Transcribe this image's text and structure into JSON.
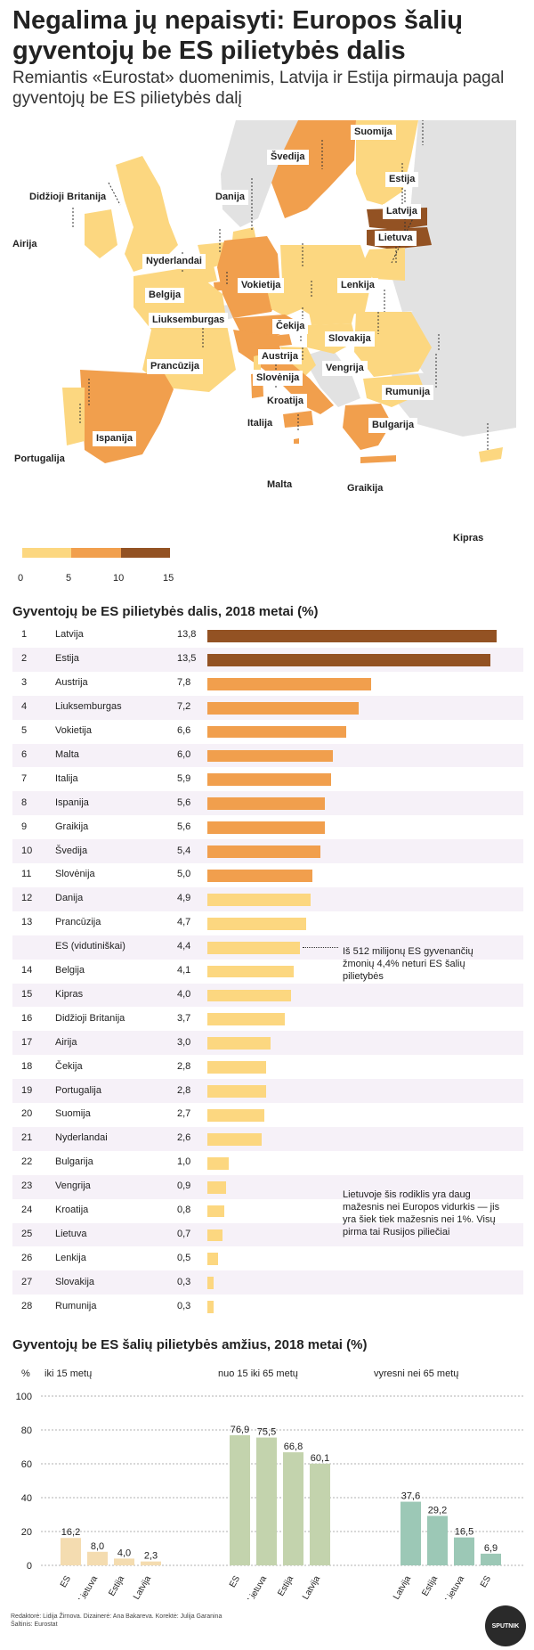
{
  "title": "Negalima jų nepaisyti: Europos šalių gyventojų be ES pilietybės dalis",
  "subtitle": "Remiantis «Eurostat» duomenimis, Latvija ir Estija pirmauja pagal gyventojų be ES pilietybės dalį",
  "colors": {
    "light": "#fcd780",
    "mid": "#f19f4d",
    "dark": "#935223",
    "grey": "#e2e2e2",
    "green": "#c3d3ad",
    "teal": "#9cc8b6",
    "age1": "#f4dcb0"
  },
  "map_labels": [
    {
      "name": "Suomija"
    },
    {
      "name": "Švedija"
    },
    {
      "name": "Estija"
    },
    {
      "name": "Latvija"
    },
    {
      "name": "Didžioji Britanija"
    },
    {
      "name": "Danija"
    },
    {
      "name": "Lietuva"
    },
    {
      "name": "Airija"
    },
    {
      "name": "Nyderlandai"
    },
    {
      "name": "Belgija"
    },
    {
      "name": "Vokietija"
    },
    {
      "name": "Lenkija"
    },
    {
      "name": "Liuksemburgas"
    },
    {
      "name": "Čekija"
    },
    {
      "name": "Slovakija"
    },
    {
      "name": "Austrija"
    },
    {
      "name": "Prancūzija"
    },
    {
      "name": "Vengrija"
    },
    {
      "name": "Slovėnija"
    },
    {
      "name": "Rumunija"
    },
    {
      "name": "Kroatija"
    },
    {
      "name": "Italija"
    },
    {
      "name": "Bulgarija"
    },
    {
      "name": "Ispanija"
    },
    {
      "name": "Portugalija"
    },
    {
      "name": "Malta"
    },
    {
      "name": "Graikija"
    },
    {
      "name": "Kipras"
    }
  ],
  "legend": {
    "ticks": [
      "0",
      "5",
      "10",
      "15"
    ]
  },
  "chart_data": [
    {
      "type": "bar",
      "title": "Gyventojų be ES pilietybės dalis, 2018 metai (%)",
      "xlim": [
        0,
        14
      ],
      "rows": [
        {
          "rank": "1",
          "country": "Latvija",
          "value": 13.8,
          "label": "13,8"
        },
        {
          "rank": "2",
          "country": "Estija",
          "value": 13.5,
          "label": "13,5"
        },
        {
          "rank": "3",
          "country": "Austrija",
          "value": 7.8,
          "label": "7,8"
        },
        {
          "rank": "4",
          "country": "Liuksemburgas",
          "value": 7.2,
          "label": "7,2"
        },
        {
          "rank": "5",
          "country": "Vokietija",
          "value": 6.6,
          "label": "6,6"
        },
        {
          "rank": "6",
          "country": "Malta",
          "value": 6.0,
          "label": "6,0"
        },
        {
          "rank": "7",
          "country": "Italija",
          "value": 5.9,
          "label": "5,9"
        },
        {
          "rank": "8",
          "country": "Ispanija",
          "value": 5.6,
          "label": "5,6"
        },
        {
          "rank": "9",
          "country": "Graikija",
          "value": 5.6,
          "label": "5,6"
        },
        {
          "rank": "10",
          "country": "Švedija",
          "value": 5.4,
          "label": "5,4"
        },
        {
          "rank": "11",
          "country": "Slovėnija",
          "value": 5.0,
          "label": "5,0"
        },
        {
          "rank": "12",
          "country": "Danija",
          "value": 4.9,
          "label": "4,9"
        },
        {
          "rank": "13",
          "country": "Prancūzija",
          "value": 4.7,
          "label": "4,7"
        },
        {
          "rank": "",
          "country": "ES (vidutiniškai)",
          "value": 4.4,
          "label": "4,4"
        },
        {
          "rank": "14",
          "country": "Belgija",
          "value": 4.1,
          "label": "4,1"
        },
        {
          "rank": "15",
          "country": "Kipras",
          "value": 4.0,
          "label": "4,0"
        },
        {
          "rank": "16",
          "country": "Didžioji Britanija",
          "value": 3.7,
          "label": "3,7"
        },
        {
          "rank": "17",
          "country": "Airija",
          "value": 3.0,
          "label": "3,0"
        },
        {
          "rank": "18",
          "country": "Čekija",
          "value": 2.8,
          "label": "2,8"
        },
        {
          "rank": "19",
          "country": "Portugalija",
          "value": 2.8,
          "label": "2,8"
        },
        {
          "rank": "20",
          "country": "Suomija",
          "value": 2.7,
          "label": "2,7"
        },
        {
          "rank": "21",
          "country": "Nyderlandai",
          "value": 2.6,
          "label": "2,6"
        },
        {
          "rank": "22",
          "country": "Bulgarija",
          "value": 1.0,
          "label": "1,0"
        },
        {
          "rank": "23",
          "country": "Vengrija",
          "value": 0.9,
          "label": "0,9"
        },
        {
          "rank": "24",
          "country": "Kroatija",
          "value": 0.8,
          "label": "0,8"
        },
        {
          "rank": "25",
          "country": "Lietuva",
          "value": 0.7,
          "label": "0,7"
        },
        {
          "rank": "26",
          "country": "Lenkija",
          "value": 0.5,
          "label": "0,5"
        },
        {
          "rank": "27",
          "country": "Slovakija",
          "value": 0.3,
          "label": "0,3"
        },
        {
          "rank": "28",
          "country": "Rumunija",
          "value": 0.3,
          "label": "0,3"
        }
      ],
      "annotations": [
        "Iš 512 milijonų ES gyvenančių žmonių 4,4% neturi ES šalių pilietybės",
        "Lietuvoje šis rodiklis yra daug mažesnis nei Europos vidurkis — jis yra šiek tiek mažesnis nei 1%. Visų pirma tai Rusijos piliečiai"
      ]
    },
    {
      "type": "bar",
      "title": "Gyventojų be ES šalių pilietybės amžius, 2018 metai (%)",
      "yunit": "%",
      "ylim": [
        0,
        100
      ],
      "yticks": [
        "0",
        "20",
        "40",
        "60",
        "80",
        "100"
      ],
      "groups": [
        {
          "name": "iki 15 metų",
          "categories": [
            "ES",
            "Lietuva",
            "Estija",
            "Latvija"
          ],
          "values": [
            16.2,
            8.0,
            4.0,
            2.3
          ],
          "labels": [
            "16,2",
            "8,0",
            "4,0",
            "2,3"
          ]
        },
        {
          "name": "nuo 15 iki 65 metų",
          "categories": [
            "ES",
            "Lietuva",
            "Estija",
            "Latvija"
          ],
          "values": [
            76.9,
            75.5,
            66.8,
            60.1
          ],
          "labels": [
            "76,9",
            "75,5",
            "66,8",
            "60,1"
          ]
        },
        {
          "name": "vyresni nei 65 metų",
          "categories": [
            "Latvija",
            "Estija",
            "Lietuva",
            "ES"
          ],
          "values": [
            37.6,
            29.2,
            16.5,
            6.9
          ],
          "labels": [
            "37,6",
            "29,2",
            "16,5",
            "6,9"
          ]
        }
      ]
    }
  ],
  "footer": {
    "credits": "Redaktorė: Lidija Žirnova. Dizainerė: Ana Bakareva. Korektė: Julija Garanina",
    "source": "Šaltinis: Eurostat",
    "logo": "SPUTNIK"
  }
}
